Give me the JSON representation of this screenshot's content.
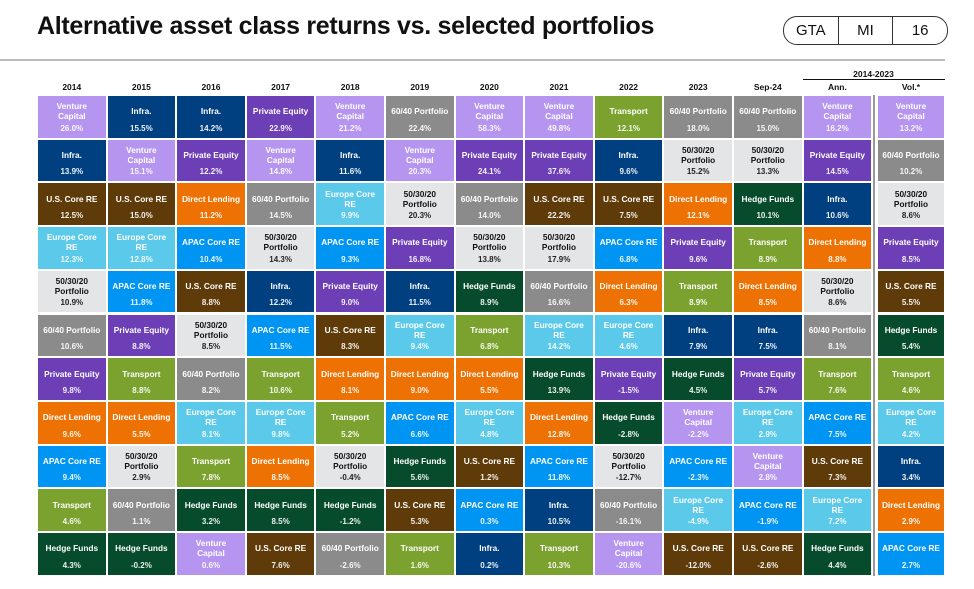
{
  "header": {
    "title": "Alternative asset class returns vs. selected portfolios",
    "badges": [
      "GTA",
      "MI",
      "16"
    ]
  },
  "chart_data": {
    "type": "table",
    "title": "Alternative asset class returns vs. selected portfolios",
    "group_header": "2014-2023",
    "assets": {
      "VC": {
        "label": "Venture\nCapital",
        "color": "#b595f0",
        "dark": false
      },
      "INF": {
        "label": "Infra.",
        "color": "#003f80",
        "dark": false
      },
      "USRE": {
        "label": "U.S. Core RE",
        "color": "#5e3b09",
        "dark": false
      },
      "EURE": {
        "label": "Europe Core\nRE",
        "color": "#5bc9ea",
        "dark": false
      },
      "P50": {
        "label": "50/30/20\nPortfolio",
        "color": "#e4e5e7",
        "dark": true
      },
      "P60": {
        "label": "60/40 Portfolio",
        "color": "#8b8b8b",
        "dark": false
      },
      "PE": {
        "label": "Private Equity",
        "color": "#6d3fb6",
        "dark": false
      },
      "DL": {
        "label": "Direct Lending",
        "color": "#ee7203",
        "dark": false
      },
      "APAC": {
        "label": "APAC Core RE",
        "color": "#0095f2",
        "dark": false
      },
      "TR": {
        "label": "Transport",
        "color": "#7ba22e",
        "dark": false
      },
      "HF": {
        "label": "Hedge Funds",
        "color": "#064b2c",
        "dark": false
      }
    },
    "columns": [
      {
        "header": "2014",
        "cells": [
          [
            "VC",
            "26.0%"
          ],
          [
            "INF",
            "13.9%"
          ],
          [
            "USRE",
            "12.5%"
          ],
          [
            "EURE",
            "12.3%"
          ],
          [
            "P50",
            "10.9%"
          ],
          [
            "P60",
            "10.6%"
          ],
          [
            "PE",
            "9.8%"
          ],
          [
            "DL",
            "9.6%"
          ],
          [
            "APAC",
            "9.4%"
          ],
          [
            "TR",
            "4.6%"
          ],
          [
            "HF",
            "4.3%"
          ]
        ]
      },
      {
        "header": "2015",
        "cells": [
          [
            "INF",
            "15.5%"
          ],
          [
            "VC",
            "15.1%"
          ],
          [
            "USRE",
            "15.0%"
          ],
          [
            "EURE",
            "12.8%"
          ],
          [
            "APAC",
            "11.8%"
          ],
          [
            "PE",
            "8.8%"
          ],
          [
            "TR",
            "8.8%"
          ],
          [
            "DL",
            "5.5%"
          ],
          [
            "P50",
            "2.9%"
          ],
          [
            "P60",
            "1.1%"
          ],
          [
            "HF",
            "-0.2%"
          ]
        ]
      },
      {
        "header": "2016",
        "cells": [
          [
            "INF",
            "14.2%"
          ],
          [
            "PE",
            "12.2%"
          ],
          [
            "DL",
            "11.2%"
          ],
          [
            "APAC",
            "10.4%"
          ],
          [
            "USRE",
            "8.8%"
          ],
          [
            "P50",
            "8.5%"
          ],
          [
            "P60",
            "8.2%"
          ],
          [
            "EURE",
            "8.1%"
          ],
          [
            "TR",
            "7.8%"
          ],
          [
            "HF",
            "3.2%"
          ],
          [
            "VC",
            "0.6%"
          ]
        ]
      },
      {
        "header": "2017",
        "cells": [
          [
            "PE",
            "22.9%"
          ],
          [
            "VC",
            "14.8%"
          ],
          [
            "P60",
            "14.5%"
          ],
          [
            "P50",
            "14.3%"
          ],
          [
            "INF",
            "12.2%"
          ],
          [
            "APAC",
            "11.5%"
          ],
          [
            "TR",
            "10.6%"
          ],
          [
            "EURE",
            "9.8%"
          ],
          [
            "DL",
            "8.5%"
          ],
          [
            "HF",
            "8.5%"
          ],
          [
            "USRE",
            "7.6%"
          ]
        ]
      },
      {
        "header": "2018",
        "cells": [
          [
            "VC",
            "21.2%"
          ],
          [
            "INF",
            "11.6%"
          ],
          [
            "EURE",
            "9.9%"
          ],
          [
            "APAC",
            "9.3%"
          ],
          [
            "PE",
            "9.0%"
          ],
          [
            "USRE",
            "8.3%"
          ],
          [
            "DL",
            "8.1%"
          ],
          [
            "TR",
            "5.2%"
          ],
          [
            "P50",
            "-0.4%"
          ],
          [
            "HF",
            "-1.2%"
          ],
          [
            "P60",
            "-2.6%"
          ]
        ]
      },
      {
        "header": "2019",
        "cells": [
          [
            "P60",
            "22.4%"
          ],
          [
            "VC",
            "20.3%"
          ],
          [
            "P50",
            "20.3%"
          ],
          [
            "PE",
            "16.8%"
          ],
          [
            "INF",
            "11.5%"
          ],
          [
            "EURE",
            "9.4%"
          ],
          [
            "DL",
            "9.0%"
          ],
          [
            "APAC",
            "6.6%"
          ],
          [
            "HF",
            "5.6%"
          ],
          [
            "USRE",
            "5.3%"
          ],
          [
            "TR",
            "1.6%"
          ]
        ]
      },
      {
        "header": "2020",
        "cells": [
          [
            "VC",
            "58.3%"
          ],
          [
            "PE",
            "24.1%"
          ],
          [
            "P60",
            "14.0%"
          ],
          [
            "P50",
            "13.8%"
          ],
          [
            "HF",
            "8.9%"
          ],
          [
            "TR",
            "6.8%"
          ],
          [
            "DL",
            "5.5%"
          ],
          [
            "EURE",
            "4.8%"
          ],
          [
            "USRE",
            "1.2%"
          ],
          [
            "APAC",
            "0.3%"
          ],
          [
            "INF",
            "0.2%"
          ]
        ]
      },
      {
        "header": "2021",
        "cells": [
          [
            "VC",
            "49.8%"
          ],
          [
            "PE",
            "37.6%"
          ],
          [
            "USRE",
            "22.2%"
          ],
          [
            "P50",
            "17.9%"
          ],
          [
            "P60",
            "16.6%"
          ],
          [
            "EURE",
            "14.2%"
          ],
          [
            "HF",
            "13.9%"
          ],
          [
            "DL",
            "12.8%"
          ],
          [
            "APAC",
            "11.8%"
          ],
          [
            "INF",
            "10.5%"
          ],
          [
            "TR",
            "10.3%"
          ]
        ]
      },
      {
        "header": "2022",
        "cells": [
          [
            "TR",
            "12.1%"
          ],
          [
            "INF",
            "9.6%"
          ],
          [
            "USRE",
            "7.5%"
          ],
          [
            "APAC",
            "6.8%"
          ],
          [
            "DL",
            "6.3%"
          ],
          [
            "EURE",
            "4.6%"
          ],
          [
            "PE",
            "-1.5%"
          ],
          [
            "HF",
            "-2.8%"
          ],
          [
            "P50",
            "-12.7%"
          ],
          [
            "P60",
            "-16.1%"
          ],
          [
            "VC",
            "-20.6%"
          ]
        ]
      },
      {
        "header": "2023",
        "cells": [
          [
            "P60",
            "18.0%"
          ],
          [
            "P50",
            "15.2%"
          ],
          [
            "DL",
            "12.1%"
          ],
          [
            "PE",
            "9.6%"
          ],
          [
            "TR",
            "8.9%"
          ],
          [
            "INF",
            "7.9%"
          ],
          [
            "HF",
            "4.5%"
          ],
          [
            "VC",
            "-2.2%"
          ],
          [
            "APAC",
            "-2.3%"
          ],
          [
            "EURE",
            "-4.9%"
          ],
          [
            "USRE",
            "-12.0%"
          ]
        ]
      },
      {
        "header": "Sep-24",
        "cells": [
          [
            "P60",
            "15.0%"
          ],
          [
            "P50",
            "13.3%"
          ],
          [
            "HF",
            "10.1%"
          ],
          [
            "TR",
            "8.9%"
          ],
          [
            "DL",
            "8.5%"
          ],
          [
            "INF",
            "7.5%"
          ],
          [
            "PE",
            "5.7%"
          ],
          [
            "EURE",
            "2.9%"
          ],
          [
            "VC",
            "2.8%"
          ],
          [
            "APAC",
            "-1.9%"
          ],
          [
            "USRE",
            "-2.6%"
          ]
        ]
      },
      {
        "header": "Ann.",
        "cells": [
          [
            "VC",
            "16.2%"
          ],
          [
            "PE",
            "14.5%"
          ],
          [
            "INF",
            "10.6%"
          ],
          [
            "DL",
            "8.8%"
          ],
          [
            "P50",
            "8.6%"
          ],
          [
            "P60",
            "8.1%"
          ],
          [
            "TR",
            "7.6%"
          ],
          [
            "APAC",
            "7.5%"
          ],
          [
            "USRE",
            "7.3%"
          ],
          [
            "EURE",
            "7.2%"
          ],
          [
            "HF",
            "4.4%"
          ]
        ]
      },
      {
        "header": "Vol.*",
        "cells": [
          [
            "VC",
            "13.2%"
          ],
          [
            "P60",
            "10.2%"
          ],
          [
            "P50",
            "8.6%"
          ],
          [
            "PE",
            "8.5%"
          ],
          [
            "USRE",
            "5.5%"
          ],
          [
            "HF",
            "5.4%"
          ],
          [
            "TR",
            "4.6%"
          ],
          [
            "EURE",
            "4.2%"
          ],
          [
            "INF",
            "3.4%"
          ],
          [
            "DL",
            "2.9%"
          ],
          [
            "APAC",
            "2.7%"
          ]
        ]
      }
    ]
  }
}
